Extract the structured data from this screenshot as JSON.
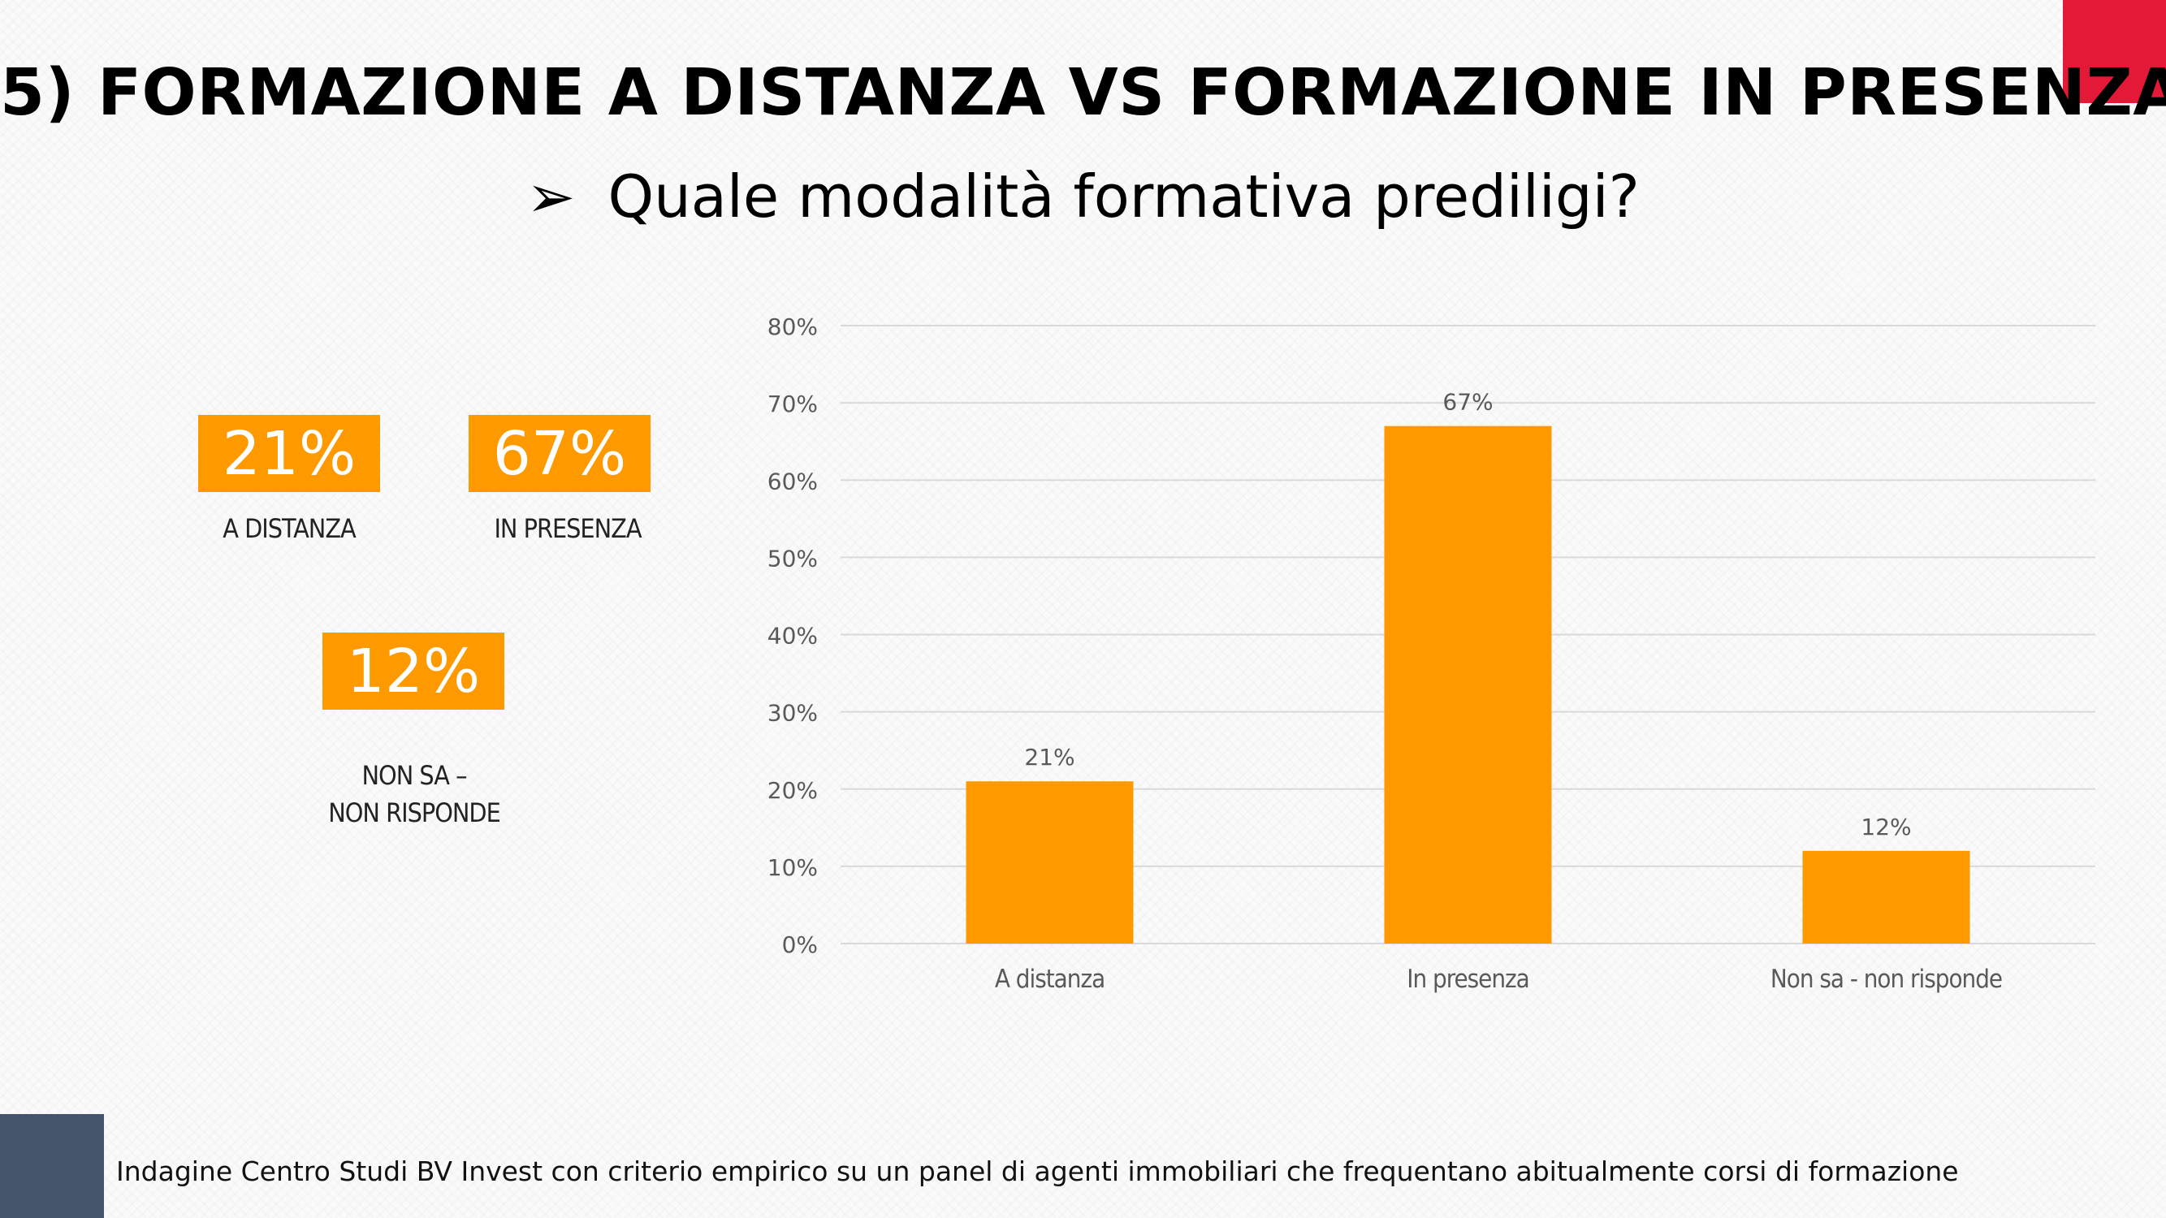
{
  "title": "5) FORMAZIONE A DISTANZA VS FORMAZIONE IN PRESENZA",
  "subtitle": {
    "bullet_glyph": "➢",
    "text": "Quale modalità formativa prediligi?"
  },
  "colors": {
    "accent_orange": "#ff9900",
    "red_corner": "#e31937",
    "navy_corner": "#44546a",
    "grid": "#d9d9d9",
    "axis_text": "#595959"
  },
  "stats": [
    {
      "value": "21%",
      "label": "A DISTANZA"
    },
    {
      "value": "67%",
      "label": "IN PRESENZA"
    },
    {
      "value": "12%",
      "label_line1": "NON SA –",
      "label_line2": "NON RISPONDE"
    }
  ],
  "chart_data": {
    "type": "bar",
    "categories": [
      "A distanza",
      "In presenza",
      "Non sa - non risponde"
    ],
    "values": [
      21,
      67,
      12
    ],
    "data_labels": [
      "21%",
      "67%",
      "12%"
    ],
    "ylim": [
      0,
      80
    ],
    "yticks": [
      0,
      10,
      20,
      30,
      40,
      50,
      60,
      70,
      80
    ],
    "ytick_labels": [
      "0%",
      "10%",
      "20%",
      "30%",
      "40%",
      "50%",
      "60%",
      "70%",
      "80%"
    ],
    "grid": true,
    "title": "",
    "xlabel": "",
    "ylabel": ""
  },
  "footnote": "Indagine Centro Studi BV Invest con criterio empirico  su un panel di agenti  immobiliari che frequentano abitualmente corsi di formazione"
}
